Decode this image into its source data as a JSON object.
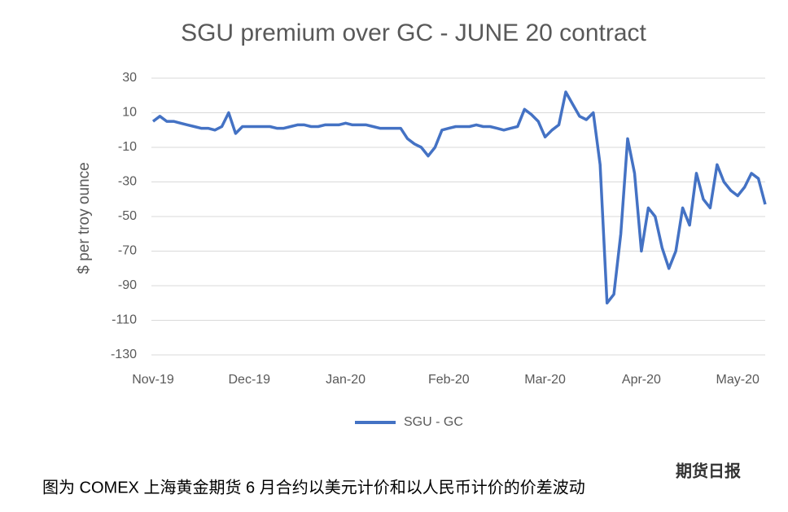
{
  "chart_data": {
    "type": "line",
    "title": "SGU premium over GC - JUNE 20 contract",
    "y_label": "$ per troy ounce",
    "categories": [
      "Nov-19",
      null,
      null,
      null,
      null,
      null,
      null,
      null,
      null,
      null,
      null,
      null,
      null,
      null,
      "Dec-19",
      null,
      null,
      null,
      null,
      null,
      null,
      null,
      null,
      null,
      null,
      null,
      null,
      null,
      "Jan-20",
      null,
      null,
      null,
      null,
      null,
      null,
      null,
      null,
      null,
      null,
      null,
      null,
      null,
      null,
      "Feb-20",
      null,
      null,
      null,
      null,
      null,
      null,
      null,
      null,
      null,
      null,
      null,
      null,
      null,
      "Mar-20",
      null,
      null,
      null,
      null,
      null,
      null,
      null,
      null,
      null,
      null,
      null,
      null,
      null,
      "Apr-20",
      null,
      null,
      null,
      null,
      null,
      null,
      null,
      null,
      null,
      null,
      null,
      null,
      null,
      "May-20",
      null,
      null,
      null,
      null
    ],
    "series": [
      {
        "name": "SGU - GC",
        "color": "#4472c4",
        "values": [
          5,
          8,
          5,
          5,
          4,
          3,
          2,
          1,
          1,
          0,
          2,
          10,
          -2,
          2,
          2,
          2,
          2,
          2,
          1,
          1,
          2,
          3,
          3,
          2,
          2,
          3,
          3,
          3,
          4,
          3,
          3,
          3,
          2,
          1,
          1,
          1,
          1,
          -5,
          -8,
          -10,
          -15,
          -10,
          0,
          1,
          2,
          2,
          2,
          3,
          2,
          2,
          1,
          0,
          1,
          2,
          12,
          9,
          5,
          -4,
          0,
          3,
          22,
          15,
          8,
          6,
          10,
          -20,
          -100,
          -95,
          -60,
          -5,
          -25,
          -70,
          -45,
          -50,
          -68,
          -80,
          -70,
          -45,
          -55,
          -25,
          -40,
          -45,
          -20,
          -30,
          -35,
          -38,
          -33,
          -25,
          -28,
          -43
        ]
      }
    ],
    "ylim": [
      -130,
      30
    ],
    "yticks": [
      30,
      10,
      -10,
      -30,
      -50,
      -70,
      -90,
      -110,
      -130
    ],
    "grid": true,
    "legend": "bottom",
    "caption": "图为 COMEX 上海黄金期货 6 月合约以美元计价和以人民币计价的价差波动",
    "watermark": "期货日报"
  }
}
